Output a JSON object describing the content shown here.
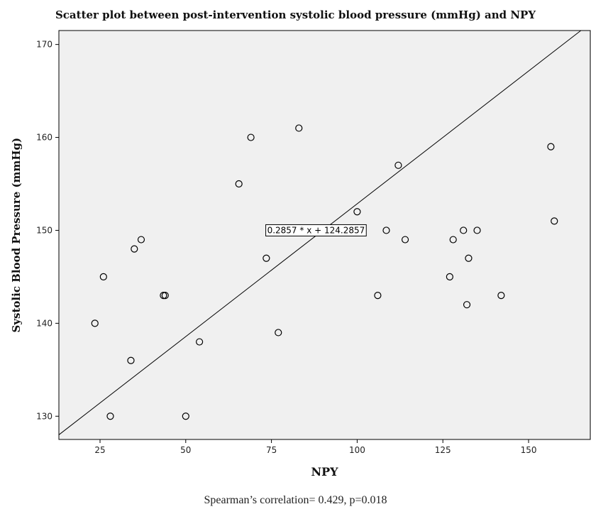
{
  "chart_data": {
    "type": "scatter",
    "title": "Scatter plot between post-intervention systolic blood pressure (mmHg) and NPY",
    "xlabel": "NPY",
    "ylabel": "Systolic Blood Pressure (mmHg)",
    "xlim": [
      13,
      168
    ],
    "ylim": [
      127.5,
      171.5
    ],
    "xticks": [
      25,
      50,
      75,
      100,
      125,
      150
    ],
    "yticks": [
      130,
      140,
      150,
      160,
      170
    ],
    "points": [
      {
        "x": 23.5,
        "y": 140
      },
      {
        "x": 26.0,
        "y": 145
      },
      {
        "x": 28.0,
        "y": 130
      },
      {
        "x": 34.0,
        "y": 136
      },
      {
        "x": 35.0,
        "y": 148
      },
      {
        "x": 37.0,
        "y": 149
      },
      {
        "x": 43.5,
        "y": 143
      },
      {
        "x": 44.0,
        "y": 143
      },
      {
        "x": 50.0,
        "y": 130
      },
      {
        "x": 54.0,
        "y": 138
      },
      {
        "x": 65.5,
        "y": 155
      },
      {
        "x": 69.0,
        "y": 160
      },
      {
        "x": 73.5,
        "y": 147
      },
      {
        "x": 75.5,
        "y": 150
      },
      {
        "x": 77.0,
        "y": 139
      },
      {
        "x": 83.0,
        "y": 161
      },
      {
        "x": 100.0,
        "y": 152
      },
      {
        "x": 106.0,
        "y": 143
      },
      {
        "x": 108.5,
        "y": 150
      },
      {
        "x": 112.0,
        "y": 157
      },
      {
        "x": 114.0,
        "y": 149
      },
      {
        "x": 127.0,
        "y": 145
      },
      {
        "x": 128.0,
        "y": 149
      },
      {
        "x": 131.0,
        "y": 150
      },
      {
        "x": 132.0,
        "y": 142
      },
      {
        "x": 132.5,
        "y": 147
      },
      {
        "x": 135.0,
        "y": 150
      },
      {
        "x": 142.0,
        "y": 143
      },
      {
        "x": 156.5,
        "y": 159
      },
      {
        "x": 157.5,
        "y": 151
      }
    ],
    "fit_line": {
      "slope": 0.2857,
      "intercept": 124.2857,
      "label": "0.2857 * x + 124.2857",
      "label_at": {
        "x": 88,
        "y": 150
      }
    },
    "grid": false,
    "legend": "none",
    "background_color": "#f0f0f0",
    "marker_color": "#000000",
    "annotation": "Spearman’s correlation= 0.429, p=0.018"
  }
}
